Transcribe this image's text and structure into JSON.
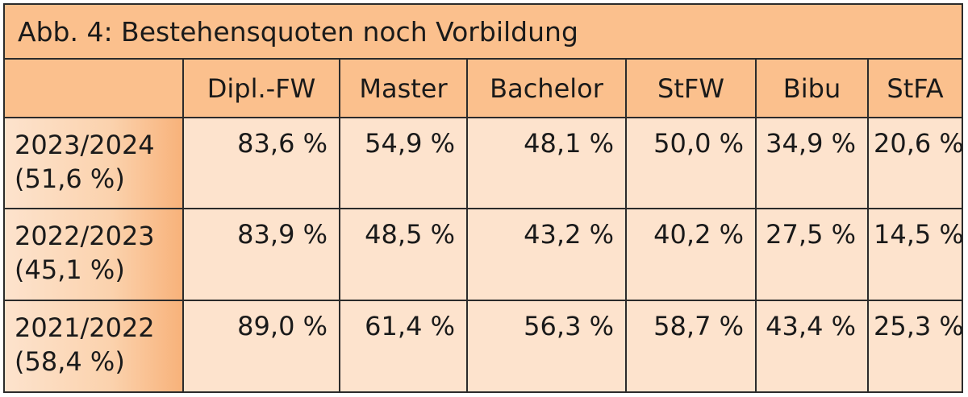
{
  "chart_data": {
    "type": "table",
    "title": "Abb. 4: Bestehensquoten noch Vorbildung",
    "columns": [
      "Dipl.-FW",
      "Master",
      "Bachelor",
      "StFW",
      "Bibu",
      "StFA"
    ],
    "rows": [
      {
        "year": "2023/2024",
        "overall": "(51,6 %)",
        "values": [
          "83,6 %",
          "54,9 %",
          "48,1 %",
          "50,0 %",
          "34,9 %",
          "20,6 %"
        ]
      },
      {
        "year": "2022/2023",
        "overall": "(45,1 %)",
        "values": [
          "83,9 %",
          "48,5 %",
          "43,2 %",
          "40,2 %",
          "27,5 %",
          "14,5 %"
        ]
      },
      {
        "year": "2021/2022",
        "overall": "(58,4 %)",
        "values": [
          "89,0 %",
          "61,4 %",
          "56,3 %",
          "58,7 %",
          "43,4 %",
          "25,3 %"
        ]
      }
    ]
  },
  "colors": {
    "header_fill": "#fbc08d",
    "cell_fill": "#fde3cd",
    "row_label_gradient_end": "#f8b27a",
    "border": "#2b2b2b"
  }
}
